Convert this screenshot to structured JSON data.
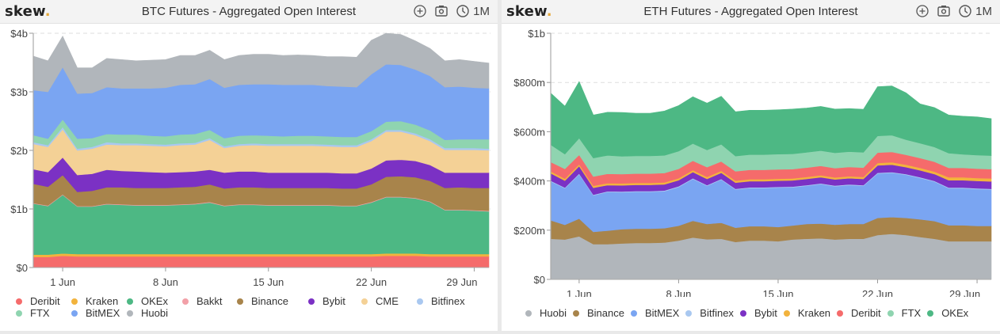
{
  "panels": [
    {
      "id": "btc",
      "logo": {
        "text": "skew",
        "dot": "."
      },
      "title": "BTC Futures - Aggregated Open Interest",
      "tools": {
        "add_icon": "plus-circle-icon",
        "snapshot_icon": "camera-icon",
        "time_icon": "clock-icon",
        "range": "1M"
      }
    },
    {
      "id": "eth",
      "logo": {
        "text": "skew",
        "dot": "."
      },
      "title": "ETH Futures - Aggregated Open Interest",
      "tools": {
        "add_icon": "plus-circle-icon",
        "snapshot_icon": "camera-icon",
        "time_icon": "clock-icon",
        "range": "1M"
      }
    }
  ],
  "chart_data": [
    {
      "type": "area",
      "stacked": true,
      "title": "BTC Futures - Aggregated Open Interest",
      "xlabel": "",
      "ylabel": "",
      "unit": "USD billions",
      "ylim": [
        0,
        4
      ],
      "yticks": [
        0,
        1,
        2,
        3,
        4
      ],
      "ytick_labels": [
        "$0",
        "$1b",
        "$2b",
        "$3b",
        "$4b"
      ],
      "x_start": "29 May",
      "x_end": "29 Jun",
      "xticks": [
        "1 Jun",
        "8 Jun",
        "15 Jun",
        "22 Jun",
        "29 Jun"
      ],
      "xtick_index": [
        3,
        10,
        17,
        24,
        31
      ],
      "grid": "horizontal dashed",
      "legend": "bottom",
      "series": [
        {
          "name": "Deribit",
          "color": "#f56b6b",
          "values": [
            0.18,
            0.18,
            0.2,
            0.19,
            0.19,
            0.19,
            0.19,
            0.19,
            0.19,
            0.19,
            0.19,
            0.19,
            0.19,
            0.19,
            0.19,
            0.19,
            0.19,
            0.19,
            0.19,
            0.19,
            0.19,
            0.19,
            0.19,
            0.19,
            0.2,
            0.2,
            0.2,
            0.19,
            0.19,
            0.19,
            0.19,
            0.19
          ]
        },
        {
          "name": "Kraken",
          "color": "#f2b33d",
          "values": [
            0.04,
            0.04,
            0.04,
            0.04,
            0.04,
            0.04,
            0.04,
            0.04,
            0.04,
            0.04,
            0.04,
            0.04,
            0.04,
            0.04,
            0.04,
            0.04,
            0.04,
            0.04,
            0.04,
            0.04,
            0.04,
            0.04,
            0.04,
            0.04,
            0.04,
            0.04,
            0.04,
            0.04,
            0.04,
            0.04,
            0.04,
            0.04
          ]
        },
        {
          "name": "OKEx",
          "color": "#4db884",
          "values": [
            0.87,
            0.83,
            1.0,
            0.81,
            0.81,
            0.85,
            0.84,
            0.83,
            0.83,
            0.83,
            0.84,
            0.85,
            0.88,
            0.82,
            0.84,
            0.84,
            0.83,
            0.83,
            0.83,
            0.83,
            0.83,
            0.82,
            0.82,
            0.88,
            0.96,
            0.96,
            0.94,
            0.89,
            0.75,
            0.75,
            0.74,
            0.73
          ]
        },
        {
          "name": "Bakkt",
          "color": "#f2a0a8",
          "values": [
            0.01,
            0.01,
            0.01,
            0.01,
            0.01,
            0.01,
            0.01,
            0.01,
            0.01,
            0.01,
            0.01,
            0.01,
            0.01,
            0.01,
            0.01,
            0.01,
            0.01,
            0.01,
            0.01,
            0.01,
            0.01,
            0.01,
            0.01,
            0.01,
            0.01,
            0.01,
            0.01,
            0.01,
            0.01,
            0.01,
            0.01,
            0.01
          ]
        },
        {
          "name": "Binance",
          "color": "#a8844b",
          "values": [
            0.33,
            0.32,
            0.33,
            0.24,
            0.26,
            0.28,
            0.29,
            0.29,
            0.29,
            0.29,
            0.29,
            0.29,
            0.3,
            0.29,
            0.29,
            0.29,
            0.29,
            0.29,
            0.29,
            0.29,
            0.29,
            0.29,
            0.29,
            0.3,
            0.34,
            0.35,
            0.35,
            0.35,
            0.37,
            0.38,
            0.38,
            0.39
          ]
        },
        {
          "name": "Bybit",
          "color": "#7b31c4",
          "values": [
            0.25,
            0.25,
            0.3,
            0.29,
            0.29,
            0.3,
            0.28,
            0.28,
            0.27,
            0.26,
            0.26,
            0.26,
            0.25,
            0.27,
            0.27,
            0.27,
            0.26,
            0.26,
            0.26,
            0.26,
            0.26,
            0.26,
            0.26,
            0.27,
            0.28,
            0.28,
            0.28,
            0.27,
            0.26,
            0.25,
            0.26,
            0.26
          ]
        },
        {
          "name": "CME",
          "color": "#f4d196",
          "values": [
            0.43,
            0.43,
            0.48,
            0.42,
            0.43,
            0.43,
            0.44,
            0.45,
            0.45,
            0.45,
            0.46,
            0.46,
            0.51,
            0.42,
            0.44,
            0.45,
            0.46,
            0.46,
            0.46,
            0.46,
            0.45,
            0.45,
            0.45,
            0.47,
            0.49,
            0.48,
            0.44,
            0.41,
            0.39,
            0.39,
            0.39,
            0.38
          ]
        },
        {
          "name": "Bitfinex",
          "color": "#a9c8f0",
          "values": [
            0.03,
            0.03,
            0.04,
            0.03,
            0.03,
            0.04,
            0.03,
            0.03,
            0.03,
            0.03,
            0.03,
            0.03,
            0.03,
            0.03,
            0.03,
            0.03,
            0.03,
            0.03,
            0.03,
            0.03,
            0.03,
            0.03,
            0.03,
            0.03,
            0.03,
            0.03,
            0.03,
            0.03,
            0.03,
            0.03,
            0.03,
            0.03
          ]
        },
        {
          "name": "FTX",
          "color": "#8fd4b0",
          "values": [
            0.12,
            0.11,
            0.13,
            0.17,
            0.15,
            0.14,
            0.15,
            0.15,
            0.14,
            0.14,
            0.15,
            0.15,
            0.14,
            0.14,
            0.14,
            0.14,
            0.14,
            0.13,
            0.14,
            0.14,
            0.14,
            0.14,
            0.14,
            0.14,
            0.14,
            0.15,
            0.15,
            0.15,
            0.14,
            0.15,
            0.15,
            0.16
          ]
        },
        {
          "name": "BitMEX",
          "color": "#7aa5f2",
          "values": [
            0.77,
            0.8,
            0.89,
            0.77,
            0.77,
            0.8,
            0.79,
            0.79,
            0.81,
            0.83,
            0.85,
            0.85,
            0.87,
            0.86,
            0.87,
            0.87,
            0.88,
            0.88,
            0.87,
            0.87,
            0.86,
            0.86,
            0.85,
            0.97,
            0.98,
            0.96,
            0.94,
            0.93,
            0.9,
            0.9,
            0.88,
            0.87
          ]
        },
        {
          "name": "Huobi",
          "color": "#b1b6bb",
          "values": [
            0.58,
            0.53,
            0.53,
            0.44,
            0.43,
            0.49,
            0.49,
            0.47,
            0.48,
            0.48,
            0.5,
            0.49,
            0.49,
            0.48,
            0.5,
            0.51,
            0.51,
            0.5,
            0.51,
            0.5,
            0.5,
            0.51,
            0.51,
            0.58,
            0.53,
            0.52,
            0.49,
            0.47,
            0.45,
            0.46,
            0.45,
            0.43
          ]
        }
      ],
      "legend_order": [
        "Deribit",
        "Kraken",
        "OKEx",
        "Bakkt",
        "Binance",
        "Bybit",
        "CME",
        "Bitfinex",
        "FTX",
        "BitMEX",
        "Huobi"
      ]
    },
    {
      "type": "area",
      "stacked": true,
      "title": "ETH Futures - Aggregated Open Interest",
      "xlabel": "",
      "ylabel": "",
      "unit": "USD millions",
      "ylim": [
        0,
        1000
      ],
      "yticks": [
        0,
        200,
        400,
        600,
        800,
        1000
      ],
      "ytick_labels": [
        "$0",
        "$200m",
        "$400m",
        "$600m",
        "$800m",
        "$1b"
      ],
      "x_start": "29 May",
      "x_end": "29 Jun",
      "xticks": [
        "1 Jun",
        "8 Jun",
        "15 Jun",
        "22 Jun",
        "29 Jun"
      ],
      "xtick_index": [
        3,
        10,
        17,
        24,
        31
      ],
      "grid": "horizontal dashed",
      "legend": "bottom",
      "series": [
        {
          "name": "Huobi",
          "color": "#b1b6bb",
          "values": [
            165,
            162,
            175,
            143,
            143,
            146,
            148,
            148,
            150,
            158,
            170,
            163,
            165,
            152,
            158,
            158,
            155,
            162,
            165,
            167,
            162,
            165,
            165,
            180,
            185,
            180,
            172,
            165,
            155,
            155,
            155,
            155
          ]
        },
        {
          "name": "Binance",
          "color": "#a8844b",
          "values": [
            75,
            60,
            72,
            50,
            55,
            58,
            58,
            58,
            58,
            60,
            68,
            62,
            65,
            58,
            58,
            58,
            58,
            57,
            60,
            60,
            60,
            60,
            60,
            70,
            68,
            70,
            72,
            72,
            65,
            65,
            62,
            62
          ]
        },
        {
          "name": "BitMEX",
          "color": "#7aa5f2",
          "values": [
            158,
            148,
            180,
            148,
            157,
            150,
            150,
            150,
            150,
            157,
            170,
            155,
            175,
            155,
            155,
            155,
            160,
            155,
            155,
            160,
            156,
            158,
            155,
            180,
            180,
            175,
            168,
            160,
            150,
            150,
            150,
            148
          ]
        },
        {
          "name": "Bitfinex",
          "color": "#a9c8f0",
          "values": [
            3,
            3,
            3,
            3,
            3,
            3,
            3,
            3,
            3,
            3,
            3,
            3,
            3,
            3,
            3,
            3,
            3,
            3,
            3,
            3,
            3,
            3,
            3,
            3,
            3,
            3,
            3,
            3,
            3,
            3,
            3,
            3
          ]
        },
        {
          "name": "Bybit",
          "color": "#7b31c4",
          "values": [
            30,
            28,
            30,
            28,
            25,
            25,
            25,
            25,
            25,
            25,
            25,
            25,
            25,
            25,
            25,
            25,
            25,
            25,
            25,
            25,
            25,
            25,
            25,
            30,
            30,
            28,
            28,
            28,
            30,
            30,
            30,
            30
          ]
        },
        {
          "name": "Kraken",
          "color": "#f2b33d",
          "values": [
            8,
            8,
            8,
            8,
            8,
            8,
            8,
            8,
            8,
            8,
            8,
            8,
            8,
            8,
            8,
            8,
            8,
            8,
            8,
            8,
            8,
            8,
            8,
            10,
            10,
            10,
            10,
            10,
            12,
            12,
            12,
            12
          ]
        },
        {
          "name": "Deribit",
          "color": "#f56b6b",
          "values": [
            38,
            40,
            38,
            38,
            38,
            38,
            38,
            38,
            38,
            38,
            38,
            40,
            38,
            38,
            38,
            38,
            38,
            38,
            38,
            38,
            38,
            38,
            38,
            42,
            42,
            40,
            40,
            40,
            38,
            38,
            38,
            38
          ]
        },
        {
          "name": "FTX",
          "color": "#8fd4b0",
          "values": [
            70,
            60,
            68,
            75,
            75,
            72,
            72,
            72,
            72,
            72,
            70,
            70,
            70,
            62,
            62,
            62,
            62,
            62,
            62,
            62,
            62,
            62,
            62,
            68,
            68,
            62,
            60,
            60,
            60,
            55,
            55,
            55
          ]
        },
        {
          "name": "OKEx",
          "color": "#4db884",
          "values": [
            210,
            195,
            230,
            175,
            175,
            178,
            173,
            173,
            180,
            185,
            190,
            190,
            195,
            180,
            180,
            180,
            180,
            182,
            180,
            180,
            178,
            175,
            175,
            200,
            200,
            190,
            160,
            160,
            155,
            155,
            155,
            150
          ]
        }
      ],
      "legend_order": [
        "Huobi",
        "Binance",
        "BitMEX",
        "Bitfinex",
        "Bybit",
        "Kraken",
        "Deribit",
        "FTX",
        "OKEx"
      ]
    }
  ]
}
